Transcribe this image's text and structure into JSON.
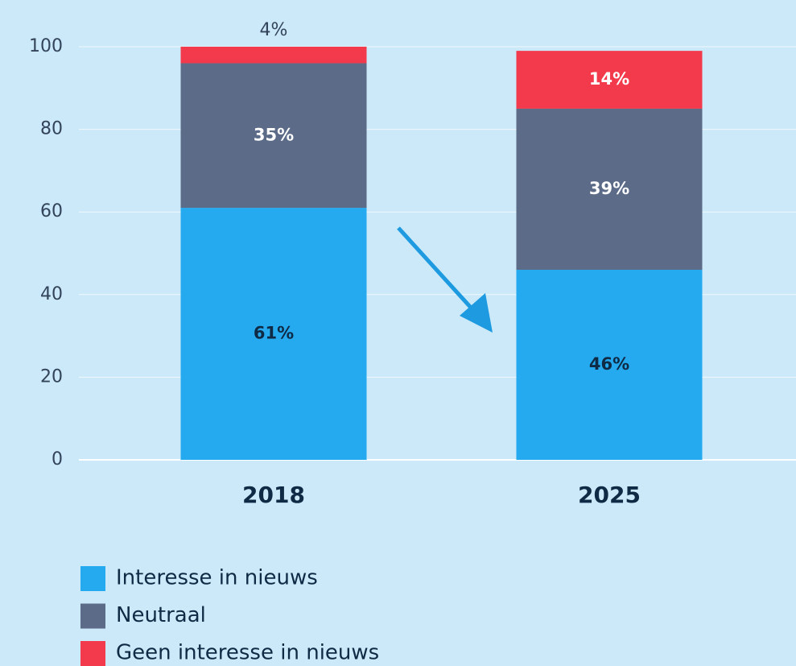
{
  "chart_data": {
    "type": "stacked_bar",
    "categories": [
      "2018",
      "2025"
    ],
    "series": [
      {
        "name": "Interesse in nieuws",
        "color": "#25aaf0",
        "values": [
          61,
          46
        ],
        "value_labels": [
          "61%",
          "46%"
        ]
      },
      {
        "name": "Neutraal",
        "color": "#5b6b88",
        "values": [
          35,
          39
        ],
        "value_labels": [
          "35%",
          "39%"
        ]
      },
      {
        "name": "Geen interesse in nieuws",
        "color": "#f23a4c",
        "values": [
          4,
          14
        ],
        "value_labels": [
          "4%",
          "14%"
        ]
      }
    ],
    "ylim": [
      0,
      100
    ],
    "yticks": [
      0,
      20,
      40,
      60,
      80,
      100
    ],
    "grid": true,
    "legend": "bottom-left"
  }
}
